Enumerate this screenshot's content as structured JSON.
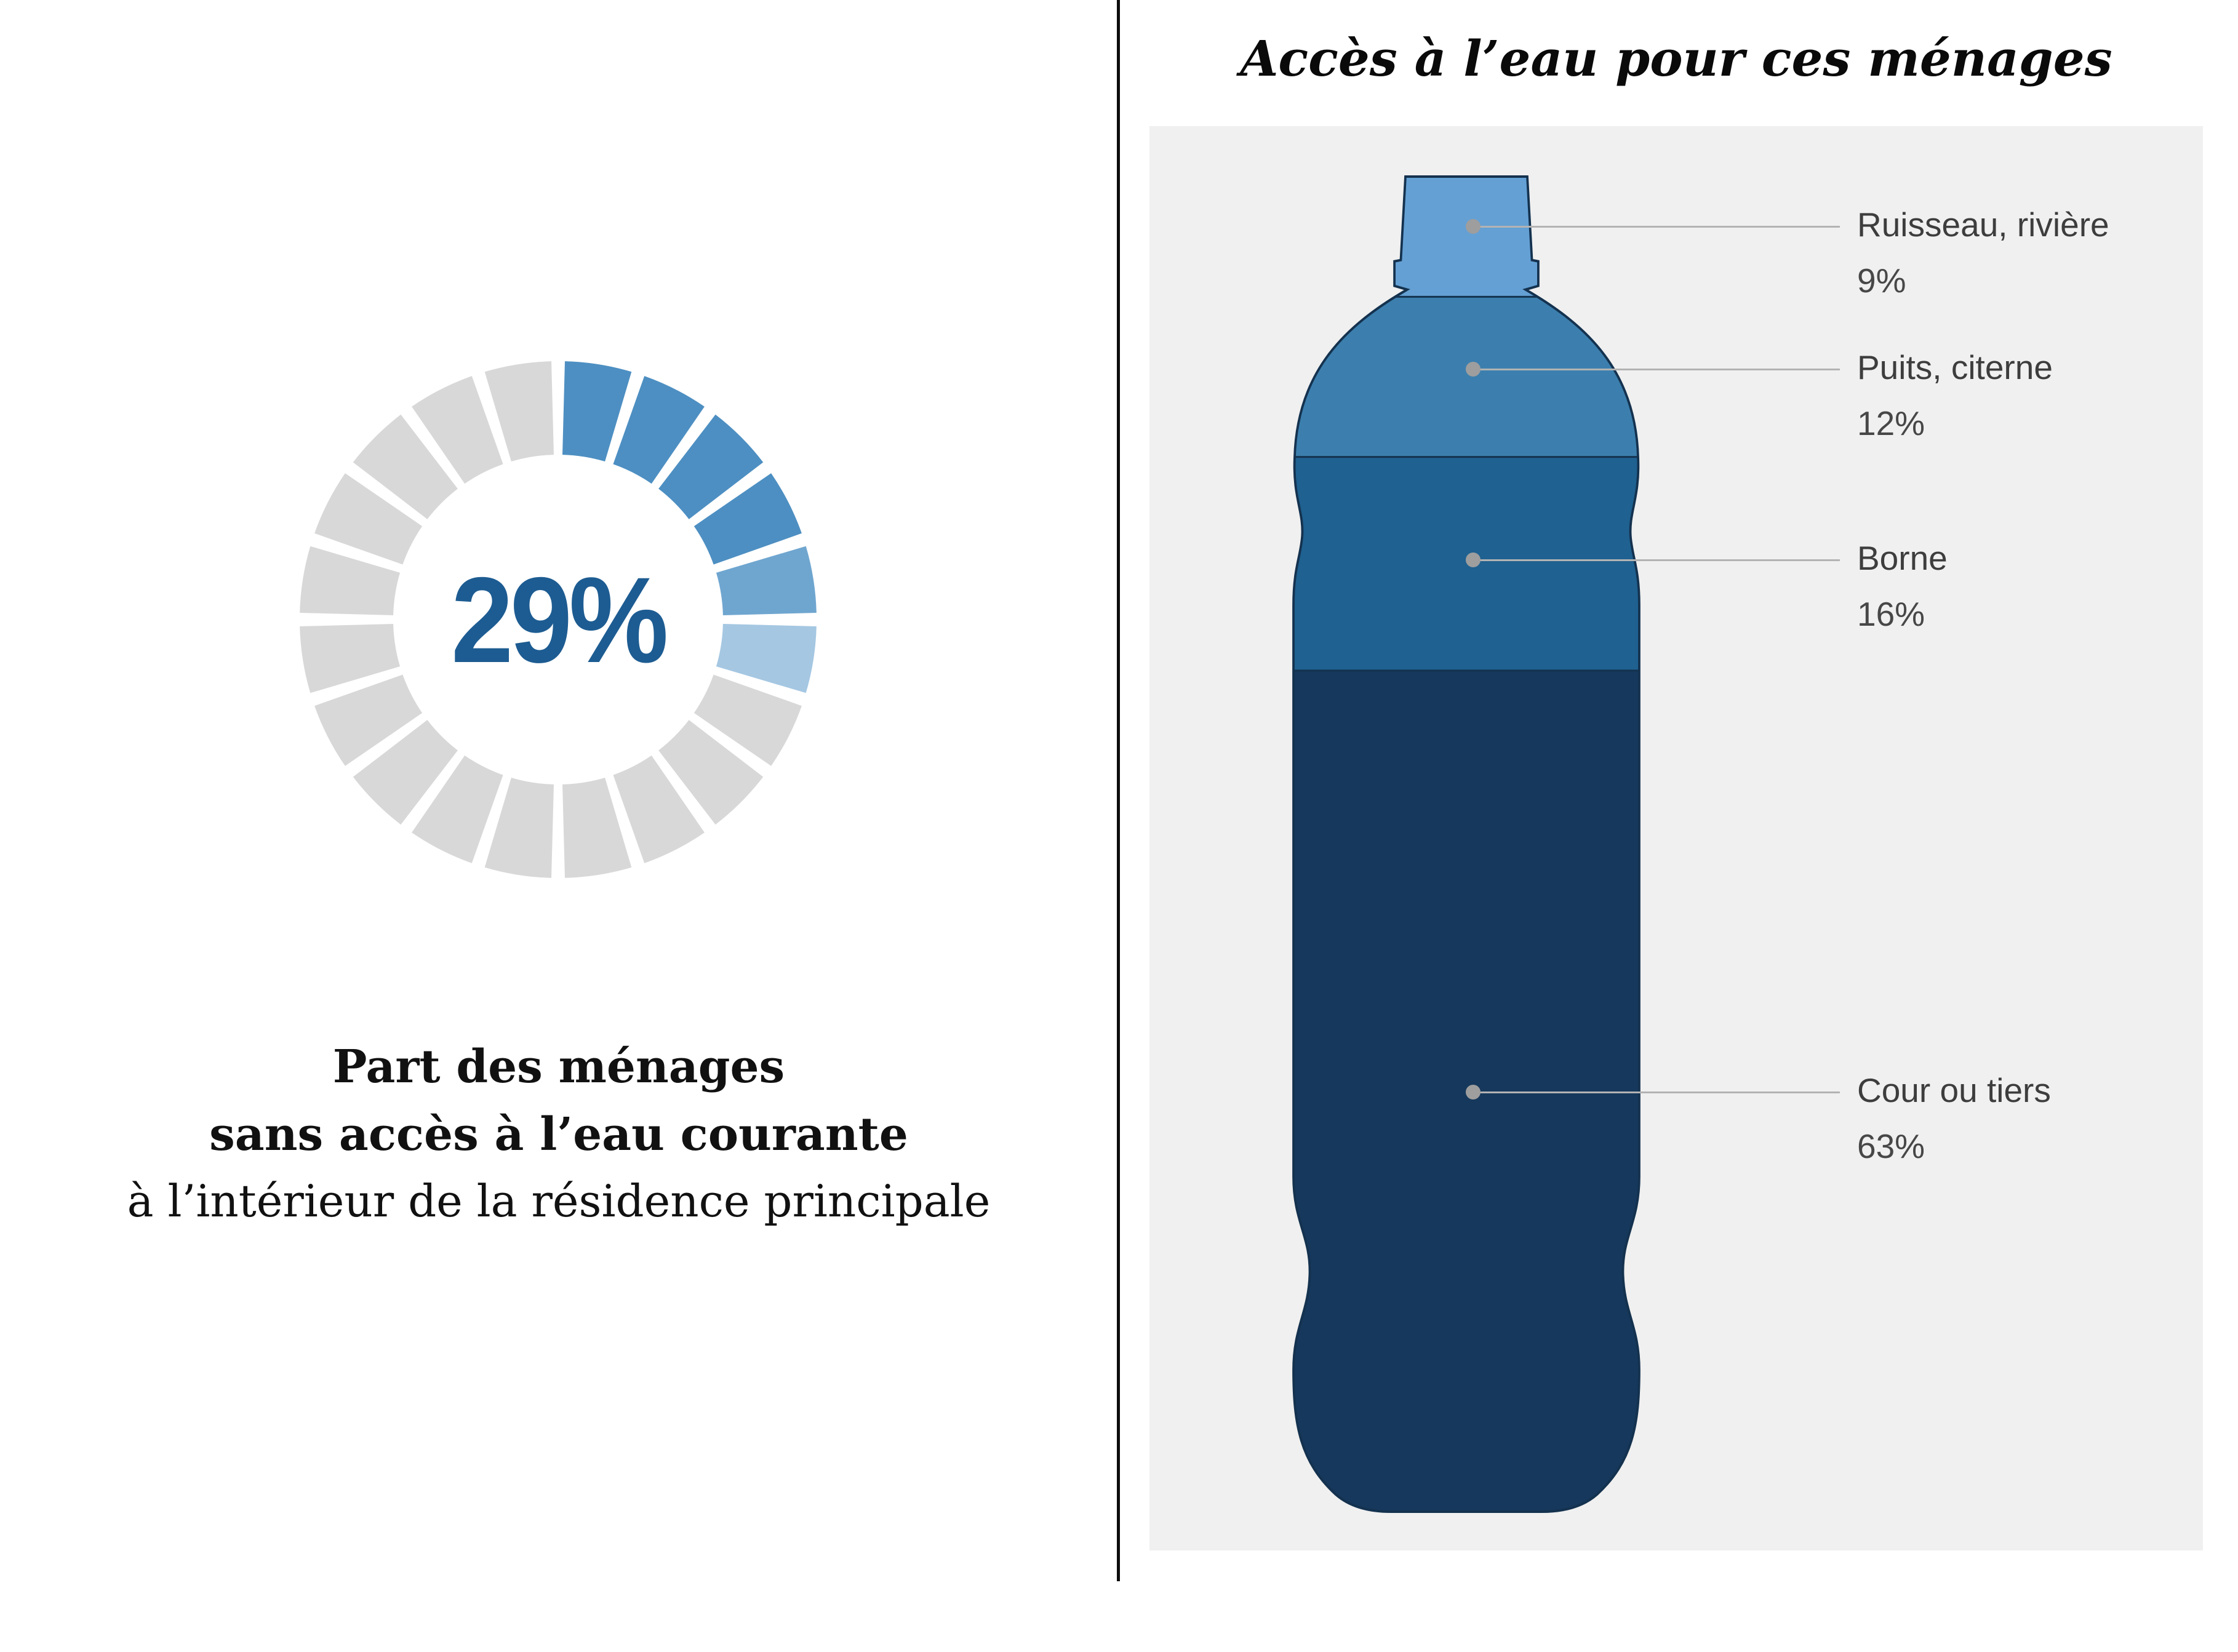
{
  "left_panel": {
    "percent_label": "29%"
  },
  "colors": {
    "donut_filled": "#4d8fc2",
    "donut_filled_light": "#6fa6d0",
    "donut_partial": "#a5c7e2",
    "donut_empty": "#d8d8d8",
    "percent_text": "#1d5c92",
    "panel_bg": "#f0f0f0",
    "leader_line": "#b3b3b3",
    "dot": "#9e9e9e",
    "bottle_outline": "#14324f",
    "band_separator": "#14324f"
  },
  "chart_data": [
    {
      "type": "donut",
      "value": 29,
      "unit": "%",
      "label": "29%",
      "segments": 20,
      "caption_lines": [
        "Part des ménages",
        "sans accès à l’eau courante",
        "à l’intérieur de la résidence principale"
      ]
    },
    {
      "type": "stacked-bottle",
      "title": "Accès à l’eau pour ces ménages",
      "categories": [
        "Ruisseau, rivière",
        "Puits, citerne",
        "Borne",
        "Cour ou tiers"
      ],
      "values": [
        9,
        12,
        16,
        63
      ],
      "value_labels": [
        "9%",
        "12%",
        "16%",
        "63%"
      ],
      "colors": [
        "#64a0d4",
        "#3c7fae",
        "#1f6190",
        "#16385c"
      ]
    }
  ]
}
